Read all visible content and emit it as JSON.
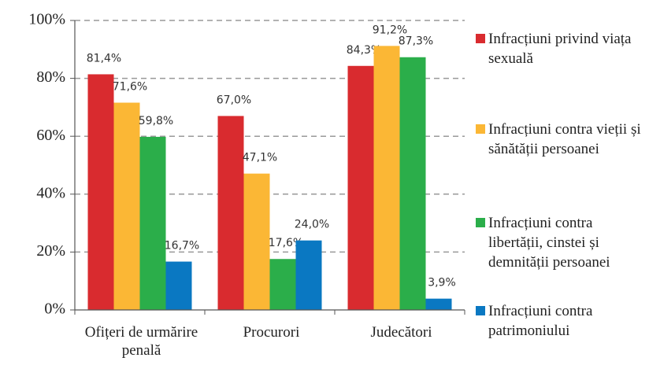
{
  "chart_data": {
    "type": "bar",
    "categories": [
      "Ofițeri de urmărire penală",
      "Procurori",
      "Judecători"
    ],
    "series": [
      {
        "name": "Infracțiuni privind viața sexuală",
        "color": "#d92b2f",
        "values": [
          81.4,
          67.0,
          84.3
        ],
        "value_labels": [
          "81,4%",
          "67,0%",
          "84,3%"
        ]
      },
      {
        "name": "Infracțiuni contra vieții și sănătății persoanei",
        "color": "#fbb735",
        "values": [
          71.6,
          47.1,
          91.2
        ],
        "value_labels": [
          "71,6%",
          "47,1%",
          "91,2%"
        ]
      },
      {
        "name": "Infracțiuni contra libertății, cinstei și demnității persoanei",
        "color": "#2bae4a",
        "values": [
          59.8,
          17.6,
          87.3
        ],
        "value_labels": [
          "59,8%",
          "17,6%",
          "87,3%"
        ]
      },
      {
        "name": "Infracțiuni contra patrimoniului",
        "color": "#0a78c2",
        "values": [
          16.7,
          24.0,
          3.9
        ],
        "value_labels": [
          "16,7%",
          "24,0%",
          "3,9%"
        ]
      }
    ],
    "ylim": [
      0,
      100
    ],
    "yticks": [
      {
        "value": 0,
        "label": "0%"
      },
      {
        "value": 20,
        "label": "20%"
      },
      {
        "value": 40,
        "label": "40%"
      },
      {
        "value": 60,
        "label": "60%"
      },
      {
        "value": 80,
        "label": "80%"
      },
      {
        "value": 100,
        "label": "100%"
      }
    ],
    "grid": true,
    "legend": "right"
  }
}
